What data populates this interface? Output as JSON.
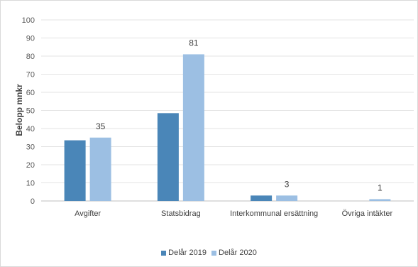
{
  "chart_data": {
    "type": "bar",
    "ylabel": "Belopp mnkr",
    "ylim": [
      0,
      100
    ],
    "yticks": [
      "0",
      "10",
      "20",
      "30",
      "40",
      "50",
      "60",
      "70",
      "80",
      "90",
      "100"
    ],
    "categories": [
      "Avgifter",
      "Statsbidrag",
      "Interkommunal ersättning",
      "Övriga intäkter"
    ],
    "series": [
      {
        "name": "Delår 2019",
        "values": [
          33.5,
          48.5,
          3,
          0
        ],
        "color": "#4a86b8"
      },
      {
        "name": "Delår 2020",
        "values": [
          35,
          81,
          3,
          1
        ],
        "color": "#9cbfe3"
      }
    ],
    "data_labels": [
      {
        "category": 0,
        "series": 1,
        "text": "35"
      },
      {
        "category": 1,
        "series": 1,
        "text": "81"
      },
      {
        "category": 2,
        "series": 1,
        "text": "3"
      },
      {
        "category": 3,
        "series": 1,
        "text": "1"
      }
    ],
    "grid": true,
    "legend_position": "bottom"
  }
}
